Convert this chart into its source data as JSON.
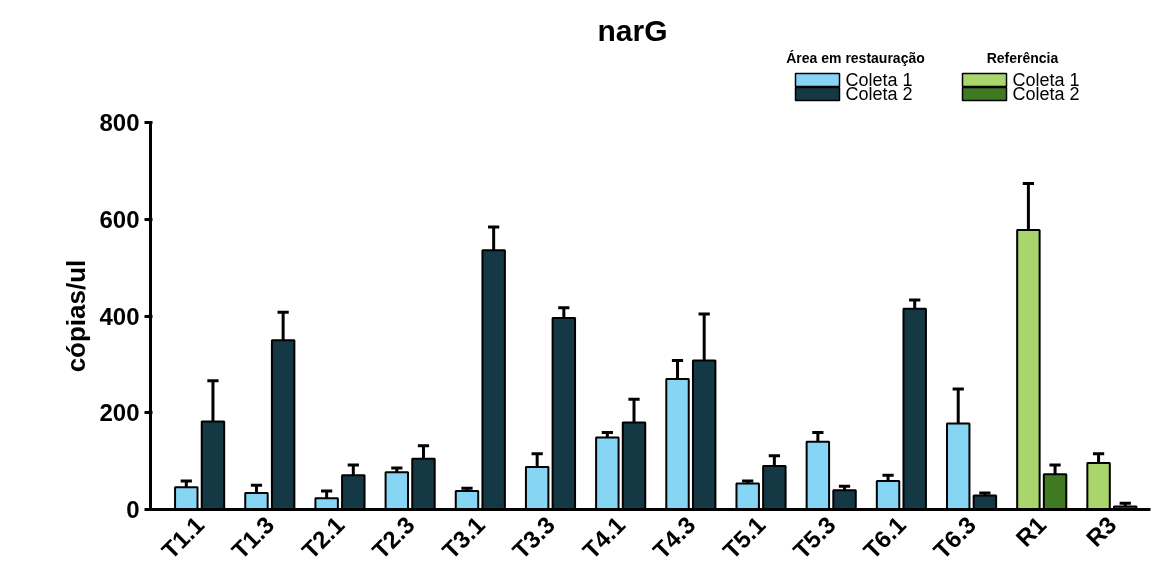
{
  "chart_data": {
    "type": "bar",
    "title": "narG",
    "ylabel": "cópias/ul",
    "categories": [
      "T1.1",
      "T1.3",
      "T2.1",
      "T2.3",
      "T3.1",
      "T3.3",
      "T4.1",
      "T4.3",
      "T5.1",
      "T5.3",
      "T6.1",
      "T6.3",
      "R1",
      "R3"
    ],
    "series": [
      {
        "name": "Coleta 1",
        "color": "#87d5f5",
        "values": [
          46,
          34,
          23,
          77,
          38,
          88,
          149,
          270,
          54,
          140,
          59,
          178,
          null,
          null
        ],
        "errors": [
          13,
          16,
          15,
          9,
          6,
          27,
          10,
          38,
          5,
          19,
          12,
          71,
          null,
          null
        ]
      },
      {
        "name": "Coleta 2",
        "color": "#143945",
        "values": [
          182,
          350,
          71,
          105,
          536,
          396,
          180,
          308,
          90,
          40,
          415,
          29,
          null,
          null
        ],
        "errors": [
          84,
          58,
          21,
          27,
          48,
          21,
          48,
          96,
          21,
          8,
          18,
          5,
          null,
          null
        ]
      },
      {
        "name": "Coleta 1",
        "color": "#a8d56c",
        "values": [
          null,
          null,
          null,
          null,
          null,
          null,
          null,
          null,
          null,
          null,
          null,
          null,
          578,
          96
        ],
        "errors": [
          null,
          null,
          null,
          null,
          null,
          null,
          null,
          null,
          null,
          null,
          null,
          null,
          96,
          19
        ]
      },
      {
        "name": "Coleta 2",
        "color": "#3f7a22",
        "values": [
          null,
          null,
          null,
          null,
          null,
          null,
          null,
          null,
          null,
          null,
          null,
          null,
          73,
          6
        ],
        "errors": [
          null,
          null,
          null,
          null,
          null,
          null,
          null,
          null,
          null,
          null,
          null,
          null,
          19,
          7
        ]
      }
    ],
    "annotations": [
      "Área em restauração",
      "Referência"
    ],
    "ylim": [
      0,
      800
    ],
    "yticks": [
      0,
      200,
      400,
      600,
      800
    ],
    "grid": false,
    "legend": "top right"
  }
}
